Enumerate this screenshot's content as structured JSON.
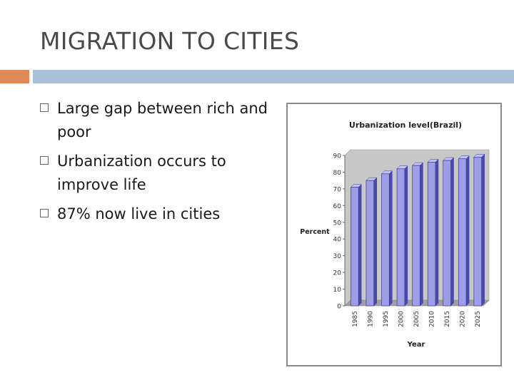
{
  "slide": {
    "title": "MIGRATION TO CITIES",
    "bullets": [
      "Large gap between rich and poor",
      "Urbanization occurs to improve life",
      "87% now live in cities"
    ]
  },
  "colors": {
    "accent_bar": "#e08a5a",
    "title_bar": "#a9c0d8",
    "bar_fill": "#9d9de8",
    "bar_edge": "#3a3a9a",
    "plot_bg": "#c8c8c8"
  },
  "chart_data": {
    "type": "bar",
    "title": "Urbanization level(Brazil)",
    "xlabel": "Year",
    "ylabel": "Percent",
    "categories": [
      "1985",
      "1990",
      "1995",
      "2000",
      "2005",
      "2010",
      "2015",
      "2020",
      "2025"
    ],
    "values": [
      71,
      75,
      79,
      82,
      84,
      86,
      87,
      88,
      89
    ],
    "ylim": [
      0,
      90
    ],
    "yticks": [
      0,
      10,
      20,
      30,
      40,
      50,
      60,
      70,
      80,
      90
    ],
    "grid": false,
    "legend": "none"
  }
}
